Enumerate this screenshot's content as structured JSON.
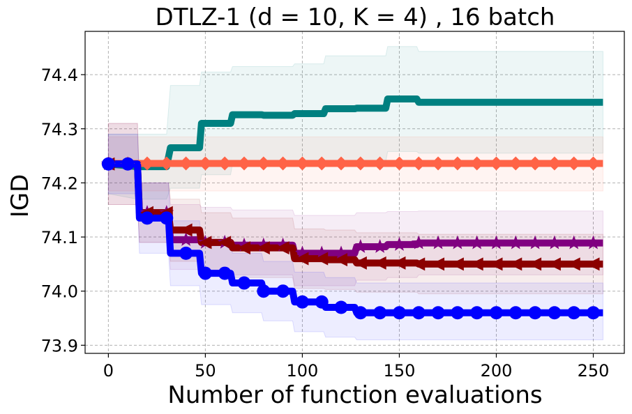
{
  "chart_data": {
    "type": "line",
    "title": "DTLZ-1 (d = 10, K = 4) , 16 batch",
    "xlabel": "Number of function evaluations",
    "ylabel": "IGD",
    "xlim": [
      -12,
      266
    ],
    "ylim": [
      73.885,
      74.48
    ],
    "xticks": [
      0,
      50,
      100,
      150,
      200,
      250
    ],
    "yticks": [
      73.9,
      74.0,
      74.1,
      74.2,
      74.3,
      74.4
    ],
    "grid": true,
    "series": [
      {
        "name": "teal-series",
        "color": "#008080",
        "marker": "none",
        "x": [
          0,
          15,
          30,
          32,
          47,
          48,
          63,
          64,
          79,
          80,
          95,
          96,
          111,
          112,
          127,
          128,
          143,
          144,
          159,
          160,
          255
        ],
        "y": [
          74.235,
          74.23,
          74.23,
          74.265,
          74.265,
          74.31,
          74.31,
          74.326,
          74.326,
          74.325,
          74.325,
          74.328,
          74.328,
          74.337,
          74.337,
          74.338,
          74.338,
          74.355,
          74.355,
          74.349,
          74.349
        ],
        "band_upper": [
          74.29,
          74.29,
          74.29,
          74.38,
          74.38,
          74.405,
          74.405,
          74.415,
          74.415,
          74.415,
          74.415,
          74.42,
          74.42,
          74.435,
          74.435,
          74.435,
          74.435,
          74.452,
          74.452,
          74.443,
          74.443
        ],
        "band_lower": [
          74.18,
          74.17,
          74.17,
          74.19,
          74.19,
          74.215,
          74.215,
          74.235,
          74.235,
          74.235,
          74.235,
          74.238,
          74.238,
          74.24,
          74.24,
          74.24,
          74.24,
          74.258,
          74.258,
          74.255,
          74.255
        ]
      },
      {
        "name": "coral-series",
        "color": "#ff6347",
        "marker": "diamond",
        "x": [
          0,
          255
        ],
        "y": [
          74.236,
          74.236
        ],
        "band_upper": [
          74.285,
          74.285
        ],
        "band_lower": [
          74.185,
          74.185
        ],
        "marker_x": [
          0,
          10,
          20,
          30,
          40,
          50,
          60,
          70,
          80,
          90,
          100,
          110,
          120,
          130,
          140,
          150,
          160,
          170,
          180,
          190,
          200,
          210,
          220,
          230,
          240,
          250
        ]
      },
      {
        "name": "purple-series",
        "color": "#800080",
        "marker": "star",
        "x": [
          0,
          15,
          16,
          31,
          32,
          47,
          48,
          63,
          64,
          95,
          96,
          127,
          128,
          143,
          144,
          159,
          160,
          255
        ],
        "y": [
          74.235,
          74.235,
          74.145,
          74.145,
          74.095,
          74.095,
          74.09,
          74.09,
          74.085,
          74.085,
          74.07,
          74.07,
          74.082,
          74.082,
          74.086,
          74.086,
          74.089,
          74.089
        ],
        "band_upper": [
          74.31,
          74.31,
          74.2,
          74.2,
          74.16,
          74.16,
          74.155,
          74.155,
          74.15,
          74.15,
          74.14,
          74.14,
          74.145,
          74.145,
          74.147,
          74.147,
          74.148,
          74.148
        ],
        "band_lower": [
          74.16,
          74.16,
          74.09,
          74.09,
          74.04,
          74.04,
          74.035,
          74.035,
          74.03,
          74.03,
          74.01,
          74.01,
          74.02,
          74.02,
          74.025,
          74.025,
          74.03,
          74.03
        ],
        "marker_x": [
          0,
          20,
          30,
          40,
          50,
          60,
          70,
          80,
          90,
          100,
          110,
          120,
          130,
          140,
          150,
          160,
          170,
          180,
          190,
          200,
          210,
          220,
          230,
          240,
          250
        ]
      },
      {
        "name": "darkred-series",
        "color": "#8b0000",
        "marker": "triangle-left",
        "x": [
          0,
          15,
          16,
          31,
          32,
          47,
          48,
          63,
          64,
          95,
          96,
          111,
          112,
          127,
          128,
          159,
          160,
          255
        ],
        "y": [
          74.235,
          74.235,
          74.145,
          74.145,
          74.113,
          74.113,
          74.09,
          74.09,
          74.08,
          74.08,
          74.06,
          74.06,
          74.058,
          74.058,
          74.052,
          74.052,
          74.05,
          74.05
        ],
        "band_upper": [
          74.31,
          74.31,
          74.2,
          74.2,
          74.17,
          74.17,
          74.145,
          74.145,
          74.135,
          74.135,
          74.115,
          74.115,
          74.113,
          74.113,
          74.108,
          74.108,
          74.105,
          74.105
        ],
        "band_lower": [
          74.16,
          74.16,
          74.09,
          74.09,
          74.055,
          74.055,
          74.035,
          74.035,
          74.025,
          74.025,
          74.005,
          74.005,
          74.003,
          74.003,
          73.998,
          73.998,
          73.995,
          73.995
        ],
        "marker_x": [
          0,
          20,
          30,
          40,
          50,
          60,
          70,
          80,
          90,
          100,
          110,
          120,
          130,
          140,
          150,
          160,
          170,
          180,
          190,
          200,
          210,
          220,
          230,
          240,
          250
        ]
      },
      {
        "name": "blue-series",
        "color": "#0000ff",
        "marker": "circle",
        "x": [
          0,
          15,
          16,
          31,
          32,
          47,
          48,
          63,
          64,
          79,
          80,
          95,
          96,
          111,
          112,
          127,
          128,
          255
        ],
        "y": [
          74.235,
          74.235,
          74.135,
          74.135,
          74.07,
          74.07,
          74.033,
          74.033,
          74.015,
          74.015,
          74.0,
          74.0,
          73.98,
          73.98,
          73.97,
          73.97,
          73.96,
          73.96
        ],
        "band_upper": [
          74.29,
          74.29,
          74.2,
          74.2,
          74.13,
          74.13,
          74.09,
          74.09,
          74.07,
          74.07,
          74.055,
          74.055,
          74.035,
          74.035,
          74.025,
          74.025,
          74.015,
          74.015
        ],
        "band_lower": [
          74.18,
          74.18,
          74.07,
          74.07,
          74.01,
          74.01,
          73.975,
          73.975,
          73.96,
          73.96,
          73.945,
          73.945,
          73.925,
          73.925,
          73.915,
          73.915,
          73.91,
          73.91
        ],
        "marker_x": [
          0,
          10,
          20,
          30,
          40,
          50,
          60,
          70,
          80,
          90,
          100,
          110,
          120,
          130,
          140,
          150,
          160,
          170,
          180,
          190,
          200,
          210,
          220,
          230,
          240,
          250
        ]
      }
    ]
  }
}
